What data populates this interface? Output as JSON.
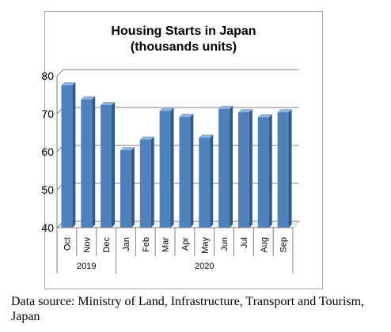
{
  "chart_data": {
    "type": "bar",
    "title_lines": [
      "Housing Starts in Japan",
      "(thousands units)"
    ],
    "categories": [
      "Oct",
      "Nov",
      "Dec",
      "Jan",
      "Feb",
      "Mar",
      "Apr",
      "May",
      "Jun",
      "Jul",
      "Aug",
      "Sep"
    ],
    "values": [
      77.5,
      73.8,
      72.3,
      60.4,
      63.2,
      70.8,
      69.2,
      63.7,
      71.3,
      70.4,
      69.1,
      70.4
    ],
    "groups": [
      {
        "label": "2019",
        "start": 0,
        "count": 3
      },
      {
        "label": "2020",
        "start": 3,
        "count": 9
      }
    ],
    "ylim": [
      40,
      80
    ],
    "yticks": [
      40,
      50,
      60,
      70,
      80
    ],
    "bar_color": "#4f81bd",
    "grid": true
  },
  "source_text": "Data source: Ministry of Land, Infrastructure, Transport and Tourism, Japan"
}
